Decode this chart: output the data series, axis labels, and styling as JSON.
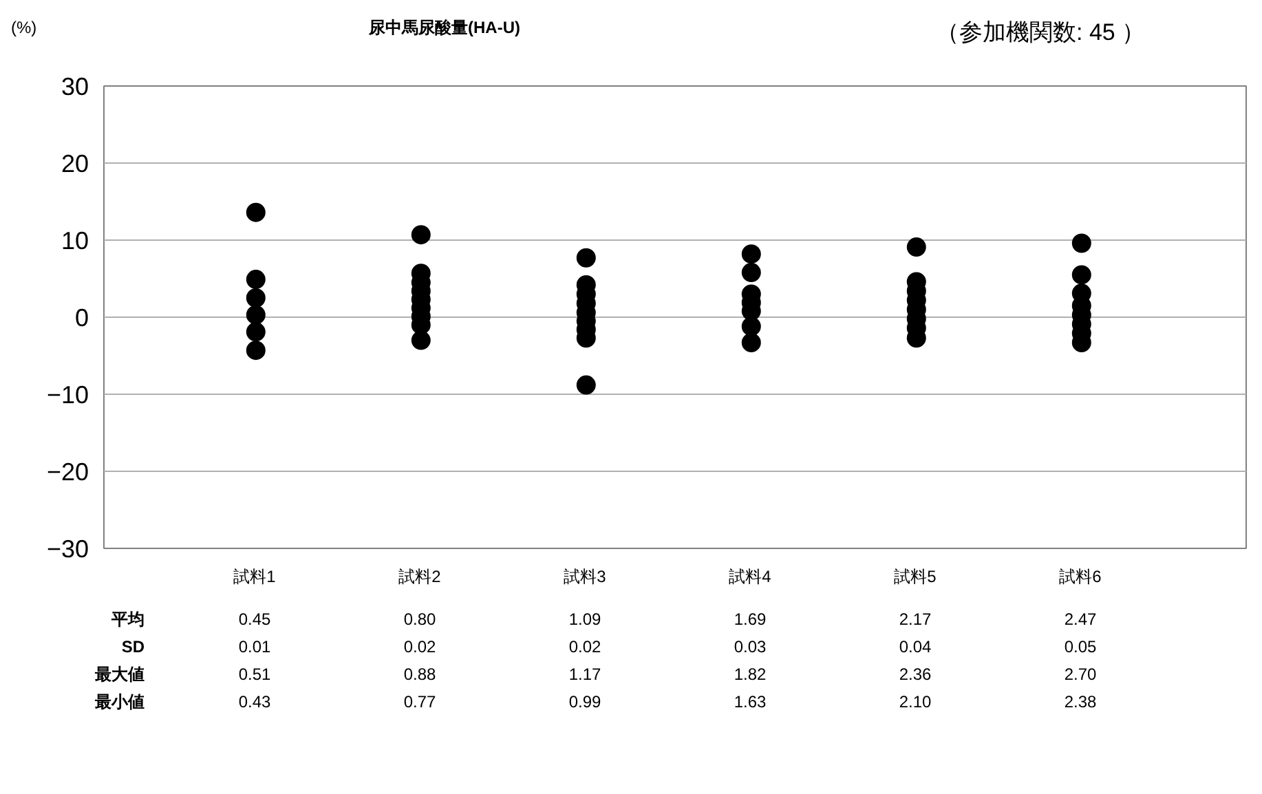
{
  "chart_data": {
    "type": "scatter",
    "title": "尿中馬尿酸量(HA-U)",
    "subtitle": "（参加機関数: 45 ）",
    "ylabel": "(%)",
    "categories": [
      "試料1",
      "試料2",
      "試料3",
      "試料4",
      "試料5",
      "試料6"
    ],
    "series": [
      {
        "color": "#000000",
        "x": [
          "試料1",
          "試料1",
          "試料1",
          "試料1",
          "試料1",
          "試料1",
          "試料2",
          "試料2",
          "試料2",
          "試料2",
          "試料2",
          "試料2",
          "試料2",
          "試料2",
          "試料2",
          "試料3",
          "試料3",
          "試料3",
          "試料3",
          "試料3",
          "試料3",
          "試料3",
          "試料3",
          "試料3",
          "試料4",
          "試料4",
          "試料4",
          "試料4",
          "試料4",
          "試料4",
          "試料4",
          "試料5",
          "試料5",
          "試料5",
          "試料5",
          "試料5",
          "試料5",
          "試料5",
          "試料5",
          "試料6",
          "試料6",
          "試料6",
          "試料6",
          "試料6",
          "試料6",
          "試料6",
          "試料6"
        ],
        "values": [
          13.6,
          4.9,
          2.5,
          0.3,
          -1.9,
          -4.3,
          10.7,
          5.7,
          4.5,
          3.4,
          2.3,
          1.2,
          0.1,
          -1.0,
          -3.0,
          7.7,
          4.2,
          3.0,
          1.8,
          0.6,
          -0.5,
          -1.6,
          -2.7,
          -8.8,
          8.2,
          5.8,
          3.0,
          1.9,
          0.8,
          -1.2,
          -3.3,
          9.1,
          4.6,
          3.4,
          2.2,
          1.0,
          -0.2,
          -1.4,
          -2.7,
          9.6,
          5.5,
          3.1,
          1.5,
          0.3,
          -0.9,
          -2.1,
          -3.3
        ]
      }
    ],
    "ylim": [
      -30,
      30
    ],
    "yticks": [
      -30,
      -20,
      -10,
      0,
      10,
      20,
      30
    ],
    "grid": "y",
    "tick_labels": "y",
    "marker": "circle",
    "annotations": [
      "平均",
      "0.45",
      "0.80",
      "1.09",
      "1.69",
      "2.17",
      "2.47",
      "SD",
      "0.01",
      "0.02",
      "0.02",
      "0.03",
      "0.04",
      "0.05",
      "最大値",
      "0.51",
      "0.88",
      "1.17",
      "1.82",
      "2.36",
      "2.70",
      "最小値",
      "0.43",
      "0.77",
      "0.99",
      "1.63",
      "2.10",
      "2.38"
    ]
  }
}
